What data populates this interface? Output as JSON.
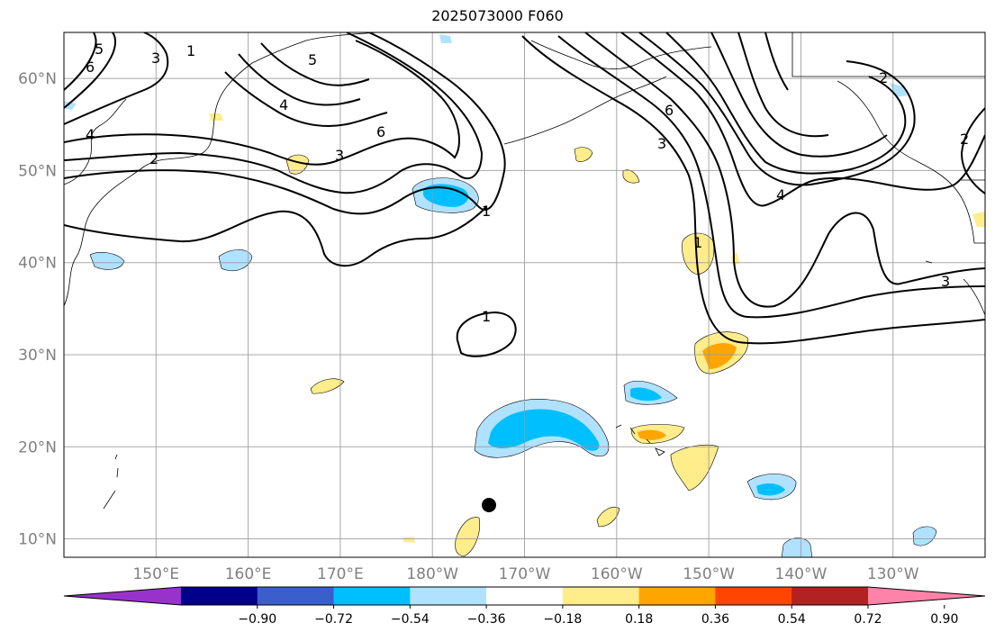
{
  "title": "2025073000 F060",
  "lat_labels": [
    {
      "label": "60°N",
      "lat": 60
    },
    {
      "label": "50°N",
      "lat": 50
    },
    {
      "label": "40°N",
      "lat": 40
    },
    {
      "label": "30°N",
      "lat": 30
    },
    {
      "label": "20°N",
      "lat": 20
    },
    {
      "label": "10°N",
      "lat": 10
    }
  ],
  "lon_labels": [
    {
      "label": "150°E",
      "lon": 150
    },
    {
      "label": "160°E",
      "lon": 160
    },
    {
      "label": "170°E",
      "lon": 170
    },
    {
      "label": "180°W",
      "lon": 180
    },
    {
      "label": "170°W",
      "lon": 190
    },
    {
      "label": "160°W",
      "lon": 200
    },
    {
      "label": "150°W",
      "lon": 210
    },
    {
      "label": "140°W",
      "lon": 220
    },
    {
      "label": "130°W",
      "lon": 230
    }
  ],
  "colorbar": {
    "ticks": [
      "−0.90",
      "−0.72",
      "−0.54",
      "−0.36",
      "−0.18",
      "0.18",
      "0.36",
      "0.54",
      "0.72",
      "0.90"
    ],
    "colors": [
      "#9932cc",
      "#00008b",
      "#3a5fcd",
      "#00bfff",
      "#b0e2ff",
      "#ffffff",
      "#ffec8b",
      "#ffa500",
      "#ff4500",
      "#b22222",
      "#ff82ab"
    ]
  },
  "contour_labels": [
    "1",
    "2",
    "3",
    "4",
    "5",
    "6"
  ],
  "map_extent": {
    "lon_min": 140,
    "lon_max": 240,
    "lat_min": 8,
    "lat_max": 65
  }
}
